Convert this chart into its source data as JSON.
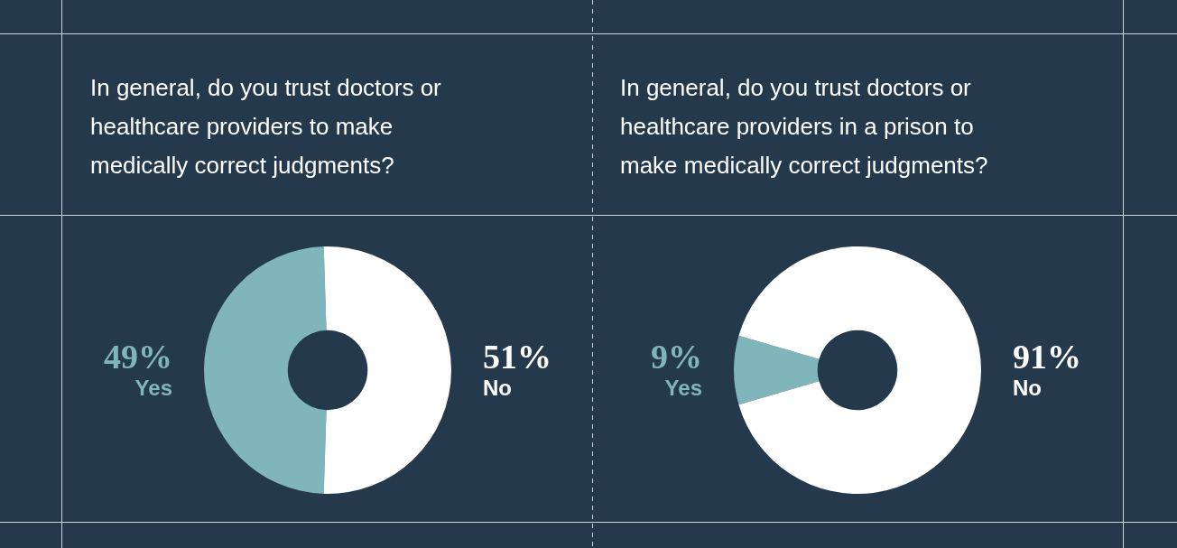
{
  "chart_data": [
    {
      "type": "donut",
      "title": "In general, do you trust doctors or healthcare providers to make medically correct judgments?",
      "categories": [
        "Yes",
        "No"
      ],
      "values": [
        49,
        51
      ],
      "colors": [
        "#80b5bb",
        "#ffffff"
      ],
      "value_labels": [
        "49%",
        "51%"
      ],
      "legend": false
    },
    {
      "type": "donut",
      "title": "In general, do you trust doctors or healthcare providers in a prison to make medically correct judgments?",
      "categories": [
        "Yes",
        "No"
      ],
      "values": [
        9,
        91
      ],
      "colors": [
        "#80b5bb",
        "#ffffff"
      ],
      "value_labels": [
        "9%",
        "91%"
      ],
      "legend": false
    }
  ]
}
